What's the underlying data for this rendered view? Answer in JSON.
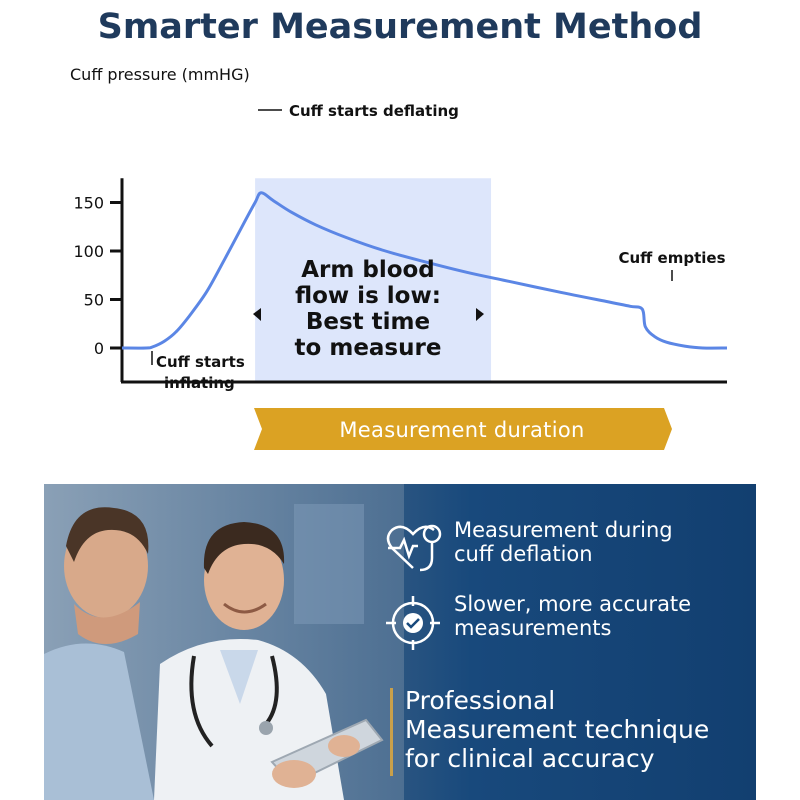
{
  "page": {
    "title": "Smarter Measurement Method"
  },
  "chart_data": {
    "type": "line",
    "ylabel": "Cuff pressure (mmHG)",
    "xlabel": "",
    "yticks": [
      0,
      50,
      100,
      150
    ],
    "ylim": [
      -35,
      175
    ],
    "xlim": [
      0,
      100
    ],
    "grid": false,
    "series": [
      {
        "x": [
          0,
          4,
          5,
          7,
          9,
          11,
          14,
          17,
          20,
          22,
          23,
          25,
          28,
          32,
          37,
          43,
          50,
          57,
          63,
          72,
          80,
          84,
          86,
          86.5,
          88,
          90,
          93,
          96,
          100
        ],
        "y": [
          0,
          0,
          1,
          7,
          17,
          32,
          58,
          92,
          127,
          150,
          160,
          152,
          140,
          127,
          114,
          101,
          89,
          78,
          70,
          58,
          48,
          43,
          40,
          22,
          12,
          6,
          2,
          0,
          0
        ]
      }
    ],
    "shaded_region": {
      "x": [
        22,
        61
      ],
      "color": "#dde6fb"
    },
    "line_color": "#5b86e5",
    "annotations": {
      "deflating": "Cuff starts deflating",
      "empties": "Cuff empties",
      "inflating": [
        "Cuff starts",
        "inflating"
      ],
      "center": [
        "Arm blood",
        "flow is low:",
        "Best time",
        "to measure"
      ]
    },
    "banner": {
      "label": "Measurement duration",
      "color": "#dba223"
    }
  },
  "features": [
    {
      "icon": "heart-pulse-stethoscope-icon",
      "text": [
        "Measurement during",
        "cuff deflation"
      ]
    },
    {
      "icon": "target-check-icon",
      "text": [
        "Slower, more accurate",
        "measurements"
      ]
    }
  ],
  "professional": [
    "Professional",
    "Measurement technique",
    "for clinical accuracy"
  ],
  "colors": {
    "title": "#1f3a5c",
    "panel": "#18497c",
    "accent": "#c9a04a"
  }
}
